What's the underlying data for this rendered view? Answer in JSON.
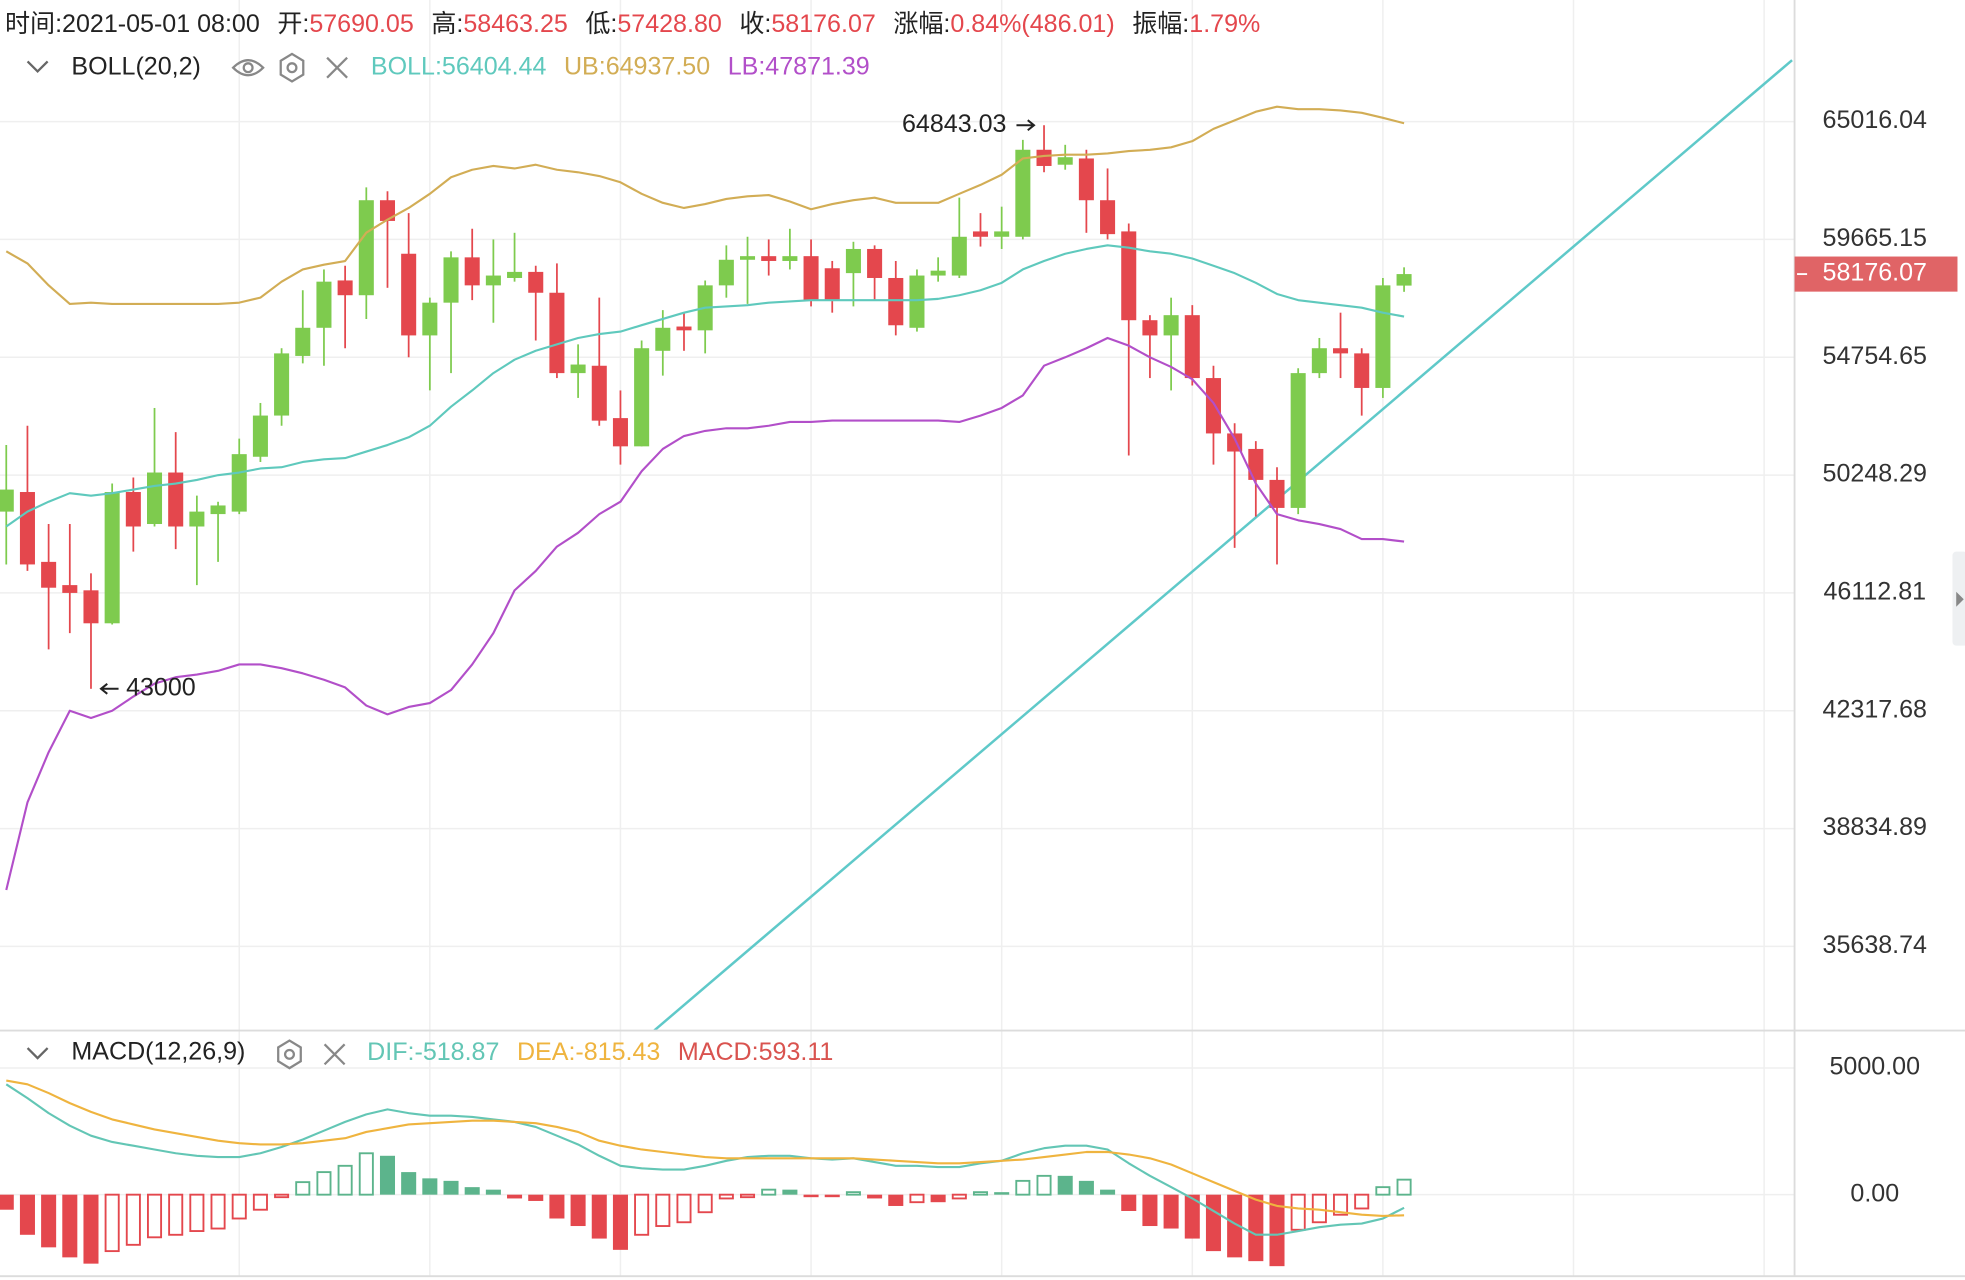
{
  "chart_data": [
    {
      "type": "candlestick",
      "header": [
        {
          "label": "时间:",
          "value": "2021-05-01 08:00"
        },
        {
          "label": "开:",
          "value": "57690.05"
        },
        {
          "label": "高:",
          "value": "58463.25"
        },
        {
          "label": "低:",
          "value": "57428.80"
        },
        {
          "label": "收:",
          "value": "58176.07"
        },
        {
          "label": "涨幅:",
          "value": "0.84%(486.01)"
        },
        {
          "label": "振幅:",
          "value": "1.79%"
        }
      ],
      "indicator": "BOLL(20,2)",
      "up_color": "#7ecb4e",
      "down_color": "#e4474d",
      "value_color": "#e4474d",
      "open": [
        48928,
        49632,
        47168,
        46376,
        46200,
        45103,
        49632,
        48488,
        50342,
        48400,
        48840,
        48928,
        50924,
        52476,
        54807,
        55943,
        57907,
        57287,
        61394,
        59045,
        55633,
        56977,
        58890,
        57700,
        58011,
        58269,
        57390,
        54125,
        54416,
        52379,
        51312,
        55012,
        55994,
        55839,
        57700,
        58786,
        58941,
        58735,
        58941,
        58424,
        58217,
        59251,
        58011,
        55943,
        58114,
        58114,
        60014,
        59780,
        59780,
        63694,
        63004,
        63291,
        61394,
        60014,
        56253,
        55633,
        56460,
        53930,
        51797,
        51215,
        50072,
        49060,
        54125,
        55116,
        54909,
        53543,
        57690.05
      ],
      "high": [
        51360,
        52088,
        48488,
        48488,
        46776,
        49940,
        50160,
        52767,
        51845,
        49500,
        49280,
        51603,
        52960,
        55116,
        57494,
        58373,
        58528,
        61969,
        61796,
        60819,
        57184,
        59148,
        60129,
        59665,
        59953,
        58528,
        58631,
        55271,
        57184,
        53446,
        55426,
        56666,
        56563,
        57907,
        59407,
        59780,
        59665,
        60129,
        59665,
        58735,
        59562,
        59407,
        58735,
        58373,
        58890,
        61509,
        60819,
        61106,
        64154,
        64843.03,
        63924,
        63694,
        62832,
        60359,
        56460,
        57184,
        56874,
        54416,
        52185,
        51506,
        50536,
        54319,
        55529,
        56563,
        55116,
        58011,
        58463.25
      ],
      "low": [
        47080,
        46860,
        44255,
        44780,
        43000,
        45063,
        47520,
        48400,
        47608,
        46376,
        47168,
        48840,
        50730,
        52088,
        54512,
        54416,
        55116,
        56305,
        57597,
        54755,
        53446,
        54125,
        57080,
        56149,
        57856,
        55426,
        53930,
        53155,
        52088,
        50633,
        51312,
        54028,
        55012,
        54909,
        57184,
        56925,
        58114,
        58373,
        56822,
        56563,
        56822,
        57080,
        55633,
        55788,
        57856,
        58011,
        59355,
        59251,
        59665,
        62659,
        62774,
        59953,
        59665,
        50972,
        53930,
        53446,
        53640,
        50633,
        47652,
        48752,
        47080,
        48840,
        53930,
        53930,
        52476,
        53155,
        57428.8
      ],
      "close": [
        49720,
        47080,
        46288,
        46113,
        45103,
        49632,
        48400,
        50342,
        48400,
        48928,
        49148,
        51021,
        52476,
        54909,
        55943,
        57856,
        57287,
        61394,
        60474,
        55633,
        56977,
        58890,
        57700,
        58114,
        58269,
        57390,
        54125,
        54464,
        52282,
        51312,
        55116,
        55943,
        55839,
        57700,
        58786,
        58941,
        58735,
        58941,
        57080,
        57080,
        59251,
        58011,
        56046,
        58114,
        58321,
        59780,
        59780,
        60014,
        63694,
        62946,
        63349,
        61394,
        59895,
        56253,
        55633,
        56460,
        53930,
        51797,
        51118,
        50072,
        49060,
        54125,
        55116,
        54909,
        53543,
        57700,
        58176.07
      ],
      "series": [
        {
          "name": "BOLL:",
          "color": "#5fc9bd",
          "legend_value": "56404.44",
          "values": [
            48400,
            48928,
            49280,
            49588,
            49500,
            49588,
            49720,
            49852,
            49940,
            50072,
            50248,
            50342,
            50488,
            50536,
            50730,
            50827,
            50875,
            51118,
            51360,
            51651,
            52088,
            52815,
            53446,
            54125,
            54658,
            55012,
            55271,
            55529,
            55684,
            55788,
            56046,
            56305,
            56563,
            56770,
            56822,
            56874,
            56977,
            57029,
            57080,
            57080,
            57080,
            57080,
            57080,
            57080,
            57132,
            57287,
            57494,
            57804,
            58373,
            58735,
            59045,
            59251,
            59407,
            59303,
            59148,
            59045,
            58838,
            58528,
            58217,
            57804,
            57339,
            57080,
            56977,
            56874,
            56770,
            56563,
            56404.44
          ]
        },
        {
          "name": "UB:",
          "color": "#d2ad55",
          "legend_value": "64937.50",
          "values": [
            59148,
            58631,
            57700,
            56925,
            56977,
            56925,
            56925,
            56925,
            56925,
            56925,
            56925,
            56977,
            57184,
            57856,
            58373,
            58580,
            58735,
            59956,
            60531,
            61049,
            61681,
            62429,
            62774,
            62946,
            62831,
            63004,
            62774,
            62659,
            62486,
            62199,
            61681,
            61279,
            61049,
            61221,
            61451,
            61566,
            61624,
            61336,
            60991,
            61221,
            61394,
            61509,
            61279,
            61279,
            61279,
            61681,
            62084,
            62544,
            63291,
            63406,
            63464,
            63464,
            63521,
            63636,
            63694,
            63808,
            64096,
            64671,
            65075,
            65488,
            65724,
            65606,
            65606,
            65547,
            65429,
            65193,
            64937.5
          ]
        },
        {
          "name": "LB:",
          "color": "#b24fc9",
          "legend_value": "47871.39",
          "values": [
            37135,
            39580,
            41060,
            42318,
            42096,
            42318,
            42760,
            43164,
            43366,
            43447,
            43568,
            43770,
            43770,
            43649,
            43487,
            43285,
            43043,
            42477,
            42207,
            42436,
            42557,
            42962,
            43770,
            44780,
            46200,
            46860,
            47696,
            48180,
            48840,
            49280,
            50390,
            51215,
            51700,
            51894,
            51991,
            51991,
            52088,
            52233,
            52233,
            52282,
            52282,
            52282,
            52282,
            52282,
            52282,
            52233,
            52476,
            52767,
            53252,
            54416,
            54755,
            55116,
            55529,
            55219,
            54755,
            54367,
            53882,
            52961,
            51603,
            49940,
            48840,
            48620,
            48488,
            48312,
            47960,
            47960,
            47871.39
          ]
        }
      ],
      "ylim": [
        33520,
        71040
      ],
      "log_scale": true,
      "yticks": [
        65016.04,
        59665.15,
        54754.65,
        50248.29,
        46112.81,
        42317.68,
        38834.89,
        35638.74
      ],
      "grid": true
    },
    {
      "type": "macd",
      "indicator": "MACD(12,26,9)",
      "series": [
        {
          "name": "DIF:",
          "color": "#63c6b5",
          "legend_value": "-518.87",
          "values": [
            4356,
            3812,
            3218,
            2723,
            2327,
            2079,
            1931,
            1782,
            1634,
            1535,
            1485,
            1485,
            1634,
            1881,
            2178,
            2525,
            2871,
            3168,
            3366,
            3218,
            3119,
            3119,
            3069,
            2970,
            2871,
            2673,
            2327,
            1980,
            1535,
            1139,
            1040,
            990,
            990,
            1139,
            1337,
            1485,
            1535,
            1535,
            1436,
            1386,
            1436,
            1287,
            1139,
            1139,
            1089,
            1089,
            1238,
            1337,
            1634,
            1832,
            1931,
            1931,
            1782,
            1238,
            743,
            297,
            -149,
            -644,
            -1139,
            -1584,
            -1584,
            -1436,
            -1287,
            -1188,
            -1139,
            -941,
            -518.87
          ]
        },
        {
          "name": "DEA:",
          "color": "#efb43f",
          "legend_value": "-815.43",
          "values": [
            4505,
            4356,
            4010,
            3614,
            3267,
            2970,
            2772,
            2574,
            2426,
            2277,
            2129,
            2030,
            1980,
            1980,
            2030,
            2129,
            2228,
            2475,
            2624,
            2772,
            2822,
            2871,
            2921,
            2921,
            2871,
            2822,
            2673,
            2475,
            2129,
            1931,
            1782,
            1683,
            1584,
            1485,
            1436,
            1436,
            1436,
            1436,
            1436,
            1436,
            1436,
            1386,
            1337,
            1287,
            1238,
            1238,
            1287,
            1337,
            1386,
            1485,
            1584,
            1683,
            1683,
            1584,
            1436,
            1188,
            842,
            495,
            149,
            -198,
            -446,
            -545,
            -594,
            -693,
            -792,
            -842,
            -815.43
          ]
        }
      ],
      "histogram": {
        "name": "MACD:",
        "label_color": "#d9534f",
        "legend_value": "593.11",
        "up_color": "#5cb48c",
        "down_color": "#e4474d",
        "values": [
          -594,
          -1584,
          -2079,
          -2475,
          -2723,
          -2228,
          -1980,
          -1683,
          -1584,
          -1436,
          -1337,
          -941,
          -594,
          -99,
          495,
          891,
          1139,
          1634,
          1535,
          891,
          644,
          545,
          297,
          198,
          -149,
          -248,
          -941,
          -1238,
          -1733,
          -2178,
          -1584,
          -1238,
          -1089,
          -693,
          -149,
          -99,
          198,
          198,
          -99,
          -99,
          99,
          -149,
          -446,
          -297,
          -297,
          -149,
          99,
          99,
          545,
          743,
          743,
          545,
          198,
          -644,
          -1238,
          -1337,
          -1733,
          -2228,
          -2475,
          -2624,
          -2822,
          -1386,
          -1089,
          -792,
          -545,
          297,
          593.11
        ]
      },
      "ylim": [
        -3220,
        6480
      ],
      "yticks": [
        {
          "value": 5000,
          "label": "5000.00"
        },
        {
          "value": 0,
          "label": "0.00"
        }
      ],
      "grid": true
    }
  ]
}
